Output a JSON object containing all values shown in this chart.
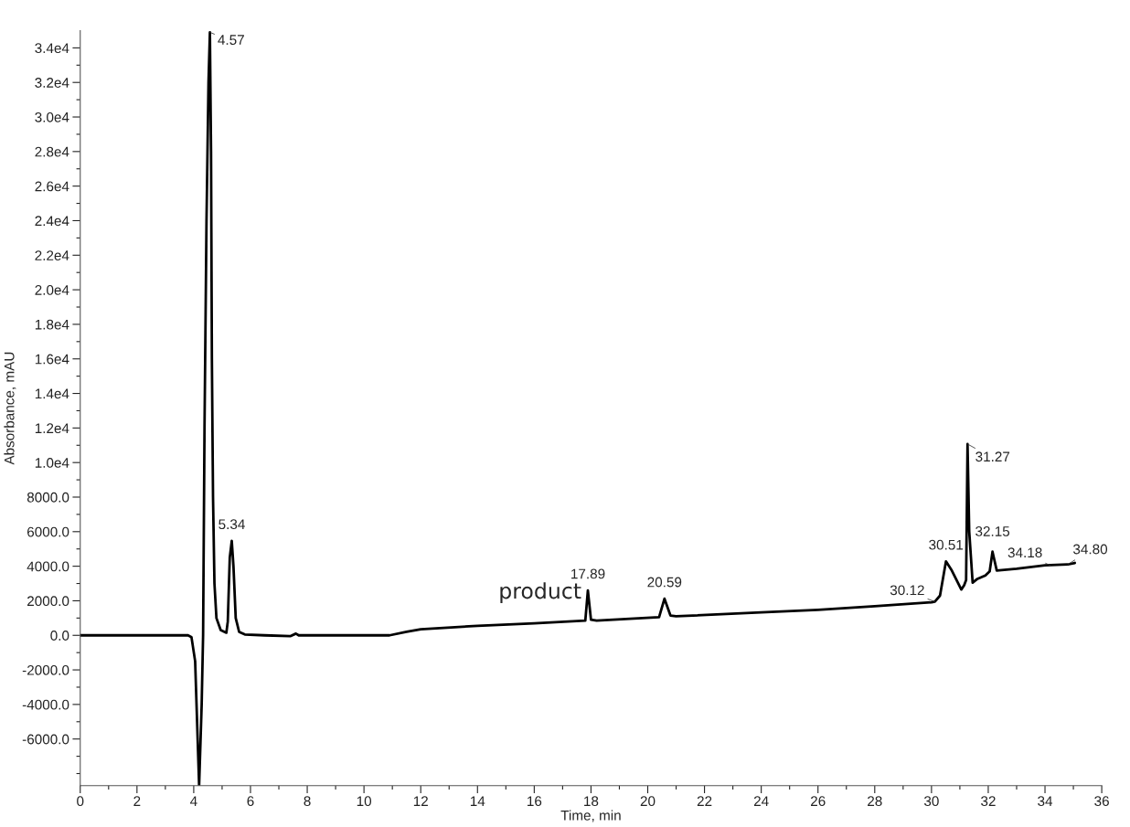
{
  "chart_data": {
    "type": "line",
    "xlabel": "Time, min",
    "ylabel": "Absorbance, mAU",
    "x": [
      0,
      3.8,
      3.92,
      4.05,
      4.19,
      4.28,
      4.33,
      4.38,
      4.45,
      4.52,
      4.57,
      4.61,
      4.64,
      4.68,
      4.73,
      4.8,
      4.95,
      5.15,
      5.2,
      5.27,
      5.34,
      5.4,
      5.48,
      5.6,
      5.8,
      6.5,
      7.4,
      7.6,
      7.7,
      10.9,
      11.5,
      12,
      14,
      16,
      17.8,
      17.89,
      18.0,
      18.2,
      20.4,
      20.59,
      20.8,
      21.0,
      24,
      26,
      28,
      30,
      30.12,
      30.3,
      30.51,
      30.7,
      31.05,
      31.15,
      31.22,
      31.27,
      31.33,
      31.45,
      31.6,
      31.9,
      32.05,
      32.15,
      32.3,
      33,
      34,
      34.8,
      35.05
    ],
    "series": [
      {
        "color": "#000000",
        "values": [
          0,
          0,
          -100,
          -1500,
          -8700,
          -4000,
          0,
          12000,
          24000,
          32000,
          34900,
          28000,
          16000,
          8000,
          3000,
          1000,
          300,
          150,
          800,
          4500,
          5470,
          4000,
          1000,
          200,
          50,
          0,
          -50,
          100,
          0,
          0,
          200,
          350,
          550,
          700,
          850,
          2600,
          900,
          850,
          1050,
          2120,
          1150,
          1100,
          1330,
          1470,
          1680,
          1910,
          1950,
          2300,
          4280,
          3800,
          2650,
          2900,
          3200,
          11070,
          6000,
          3050,
          3250,
          3470,
          3700,
          4840,
          3750,
          3850,
          4050,
          4100,
          4190
        ]
      }
    ],
    "xlim": [
      0,
      36
    ],
    "xticks": [
      0,
      {
        "value": 1,
        "label": null
      },
      2,
      {
        "value": 3,
        "label": null
      },
      4,
      {
        "value": 5,
        "label": null
      },
      6,
      {
        "value": 7,
        "label": null
      },
      8,
      {
        "value": 9,
        "label": null
      },
      10,
      {
        "value": 11,
        "label": null
      },
      12,
      {
        "value": 13,
        "label": null
      },
      14,
      {
        "value": 15,
        "label": null
      },
      16,
      {
        "value": 17,
        "label": null
      },
      18,
      {
        "value": 19,
        "label": null
      },
      20,
      {
        "value": 21,
        "label": null
      },
      22,
      {
        "value": 23,
        "label": null
      },
      24,
      {
        "value": 25,
        "label": null
      },
      26,
      {
        "value": 27,
        "label": null
      },
      28,
      {
        "value": 29,
        "label": null
      },
      30,
      {
        "value": 31,
        "label": null
      },
      32,
      {
        "value": 33,
        "label": null
      },
      34,
      {
        "value": 35,
        "label": null
      },
      36
    ],
    "ylim": [
      -8700,
      35000
    ],
    "yticks": [
      {
        "value": -8000,
        "label": null
      },
      {
        "value": -7000,
        "label": null
      },
      {
        "value": -6000,
        "label": "-6000.0"
      },
      {
        "value": -5000,
        "label": null
      },
      {
        "value": -4000,
        "label": "-4000.0"
      },
      {
        "value": -3000,
        "label": null
      },
      {
        "value": -2000,
        "label": "-2000.0"
      },
      {
        "value": -1000,
        "label": null
      },
      {
        "value": 0,
        "label": "0.0"
      },
      {
        "value": 1000,
        "label": null
      },
      {
        "value": 2000,
        "label": "2000.0"
      },
      {
        "value": 3000,
        "label": null
      },
      {
        "value": 4000,
        "label": "4000.0"
      },
      {
        "value": 5000,
        "label": null
      },
      {
        "value": 6000,
        "label": "6000.0"
      },
      {
        "value": 7000,
        "label": null
      },
      {
        "value": 8000,
        "label": "8000.0"
      },
      {
        "value": 9000,
        "label": null
      },
      {
        "value": 10000,
        "label": "1.0e4"
      },
      {
        "value": 11000,
        "label": null
      },
      {
        "value": 12000,
        "label": "1.2e4"
      },
      {
        "value": 13000,
        "label": null
      },
      {
        "value": 14000,
        "label": "1.4e4"
      },
      {
        "value": 15000,
        "label": null
      },
      {
        "value": 16000,
        "label": "1.6e4"
      },
      {
        "value": 17000,
        "label": null
      },
      {
        "value": 18000,
        "label": "1.8e4"
      },
      {
        "value": 19000,
        "label": null
      },
      {
        "value": 20000,
        "label": "2.0e4"
      },
      {
        "value": 21000,
        "label": null
      },
      {
        "value": 22000,
        "label": "2.2e4"
      },
      {
        "value": 23000,
        "label": null
      },
      {
        "value": 24000,
        "label": "2.4e4"
      },
      {
        "value": 25000,
        "label": null
      },
      {
        "value": 26000,
        "label": "2.6e4"
      },
      {
        "value": 27000,
        "label": null
      },
      {
        "value": 28000,
        "label": "2.8e4"
      },
      {
        "value": 29000,
        "label": null
      },
      {
        "value": 30000,
        "label": "3.0e4"
      },
      {
        "value": 31000,
        "label": null
      },
      {
        "value": 32000,
        "label": "3.2e4"
      },
      {
        "value": 33000,
        "label": null
      },
      {
        "value": 34000,
        "label": "3.4e4"
      }
    ],
    "grid": false,
    "legend": false,
    "marker": "none",
    "line_style": "solid",
    "annotations": [
      {
        "text": "4.57",
        "x": 4.57,
        "y": 34900
      },
      {
        "text": "5.34",
        "x": 5.34,
        "y": 5470
      },
      {
        "text": "product",
        "x": 17.89,
        "y": 2600
      },
      {
        "text": "17.89",
        "x": 17.89,
        "y": 2600
      },
      {
        "text": "20.59",
        "x": 20.59,
        "y": 2120
      },
      {
        "text": "30.12",
        "x": 30.12,
        "y": 1950
      },
      {
        "text": "30.51",
        "x": 30.51,
        "y": 4280
      },
      {
        "text": "31.27",
        "x": 31.27,
        "y": 11070
      },
      {
        "text": "32.15",
        "x": 32.15,
        "y": 4840
      },
      {
        "text": "34.18",
        "x": 34.18,
        "y": 4050
      },
      {
        "text": "34.80",
        "x": 34.8,
        "y": 4100
      }
    ]
  }
}
